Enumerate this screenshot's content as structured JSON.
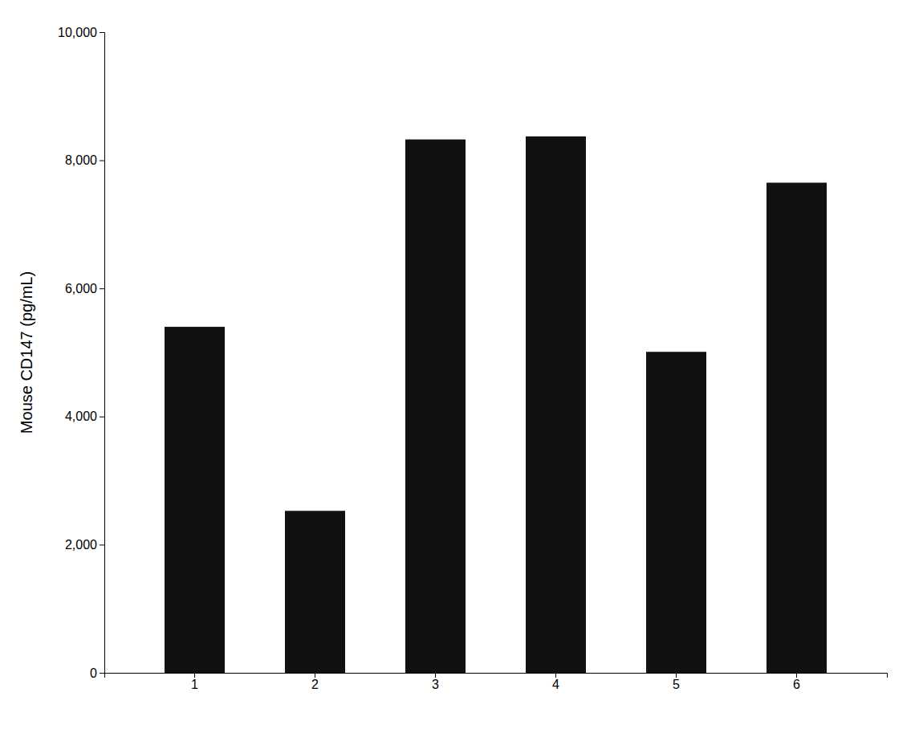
{
  "chart_data": {
    "type": "bar",
    "categories": [
      "1",
      "2",
      "3",
      "4",
      "5",
      "6"
    ],
    "values": [
      5400,
      2528,
      8325,
      8372.5,
      5010,
      7650
    ],
    "color": "#111111",
    "ylabel": "Mouse CD147 (pg/mL)",
    "ylim": [
      0,
      10000
    ],
    "yticks": [
      0,
      {
        "value": 2000,
        "label": "2,000"
      },
      {
        "value": 4000,
        "label": "4,000"
      },
      {
        "value": 6000,
        "label": "6,000"
      },
      {
        "value": 8000,
        "label": "8,000"
      },
      {
        "value": 10000,
        "label": "10,000"
      }
    ],
    "grid": false
  }
}
